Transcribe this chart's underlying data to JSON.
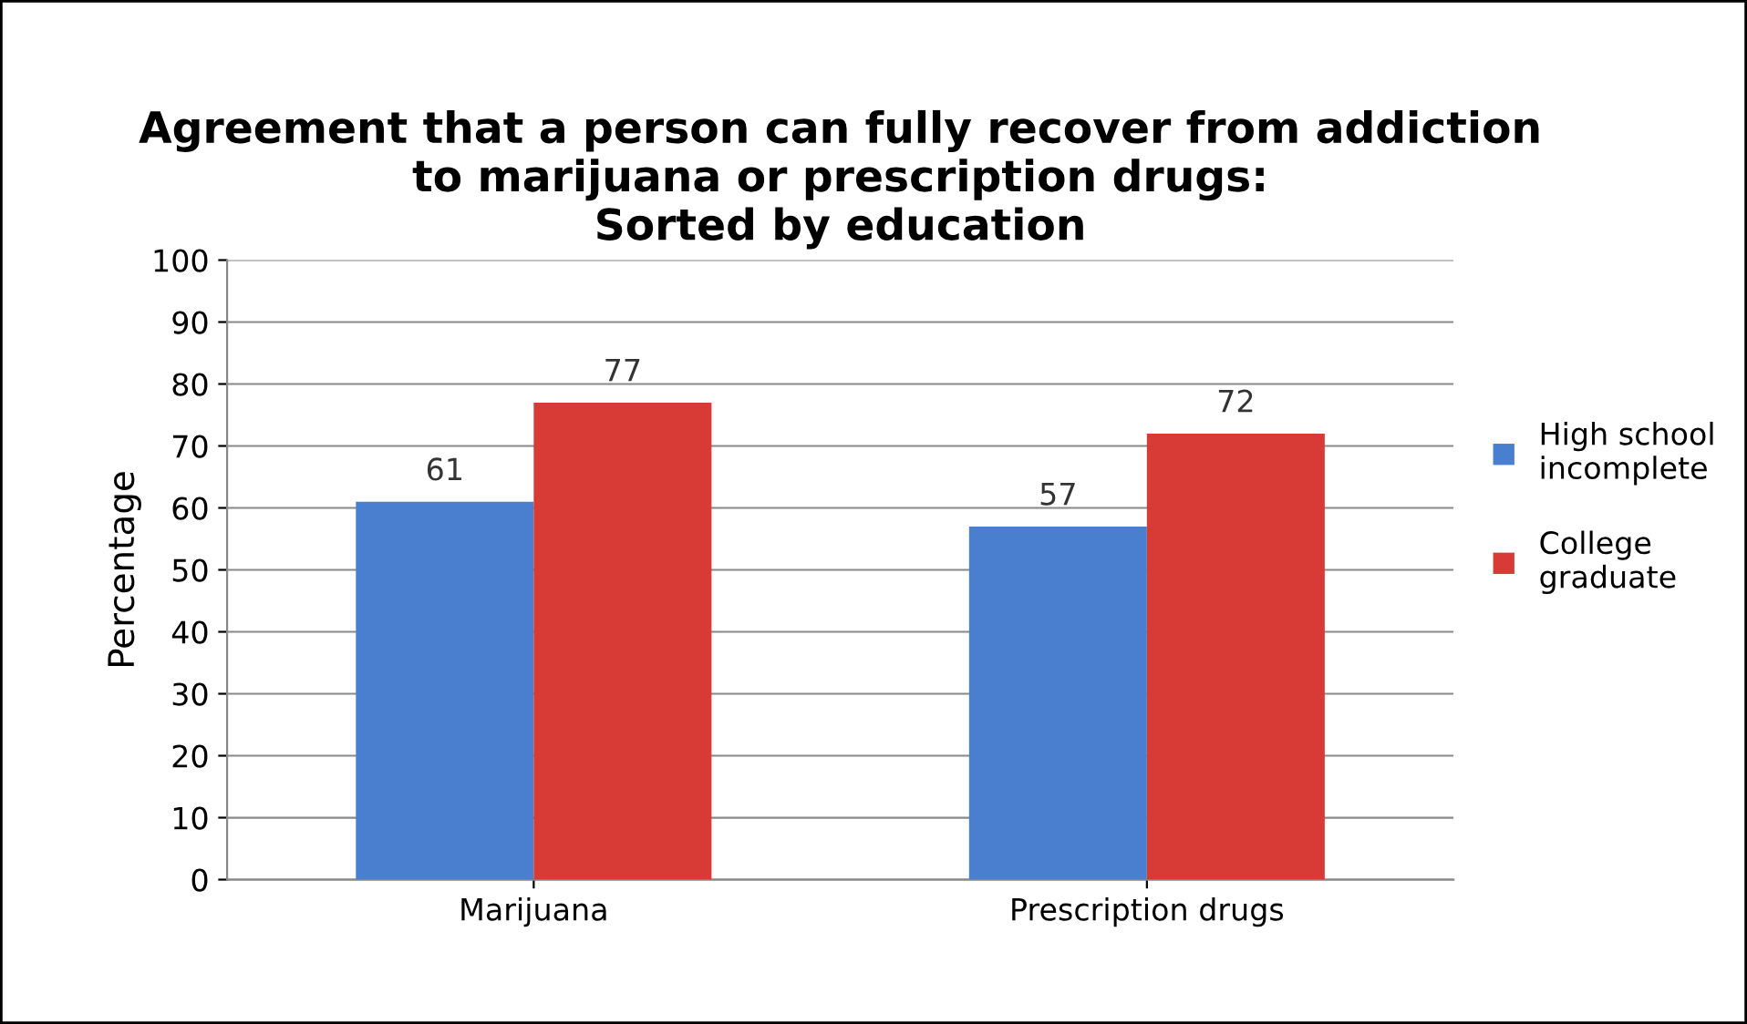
{
  "chart_data": {
    "type": "bar",
    "title": "Agreement that a person can fully recover from addiction\nto marijuana or prescription drugs:\nSorted by education",
    "ylabel": "Percentage",
    "categories": [
      "Marijuana",
      "Prescription drugs"
    ],
    "series": [
      {
        "name": "High school incomplete",
        "color": "#4a7fcf",
        "values": [
          61,
          57
        ]
      },
      {
        "name": "College graduate",
        "color": "#d83a36",
        "values": [
          77,
          72
        ]
      }
    ],
    "ylim": [
      0,
      100
    ],
    "yticks": [
      0,
      10,
      20,
      30,
      40,
      50,
      60,
      70,
      80,
      90,
      100
    ],
    "grid": "y",
    "legend": "right",
    "data_labels": true
  }
}
